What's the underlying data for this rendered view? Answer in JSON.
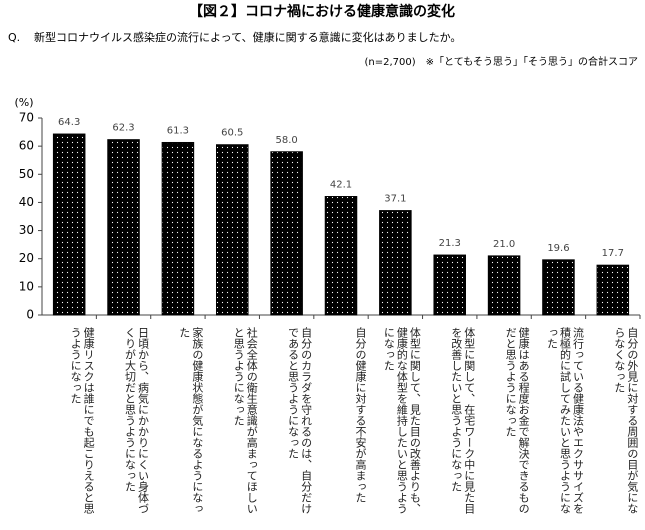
{
  "chart_data": {
    "type": "bar",
    "title": "【図２】コロナ禍における健康意識の変化",
    "question_label": "Q.",
    "question": "新型コロナウイルス感染症の流行によって、健康に関する意識に変化はありましたか。",
    "note": "(n=2,700)　※「とてもそう思う」「そう思う」の合計スコア",
    "y_label": "(%)",
    "categories": [
      "健康リスクは誰にでも起こりえると思うようになった",
      "日頃から、病気にかかりにくい身体づくりが大切だと思うようになった",
      "家族の健康状態が気になるようになった",
      "社会全体の衛生意識が高まってほしいと思うようになった",
      "自分のカラダを守れるのは、自分だけであると思うようになった",
      "自分の健康に対する不安が高まった",
      "体型に関して、見た目の改善よりも、健康的な体型を維持したいと思うようになった",
      "体型に関して、在宅ワーク中に見た目を改善したいと思うようになった",
      "健康はある程度お金で解決できるものだと思うようになった",
      "流行っている健康法やエクササイズを積極的に試してみたいと思うようになった",
      "自分の外見に対する周囲の目が気にならなくなった"
    ],
    "values": [
      64.3,
      62.3,
      61.3,
      60.5,
      58.0,
      42.1,
      37.1,
      21.3,
      21.0,
      19.6,
      17.7
    ],
    "value_labels": [
      "64.3",
      "62.3",
      "61.3",
      "60.5",
      "58.0",
      "42.1",
      "37.1",
      "21.3",
      "21.0",
      "19.6",
      "17.7"
    ],
    "color": "#000000",
    "ylim": [
      0,
      70
    ],
    "yticks": [
      0,
      10,
      20,
      30,
      40,
      50,
      60,
      70
    ]
  }
}
